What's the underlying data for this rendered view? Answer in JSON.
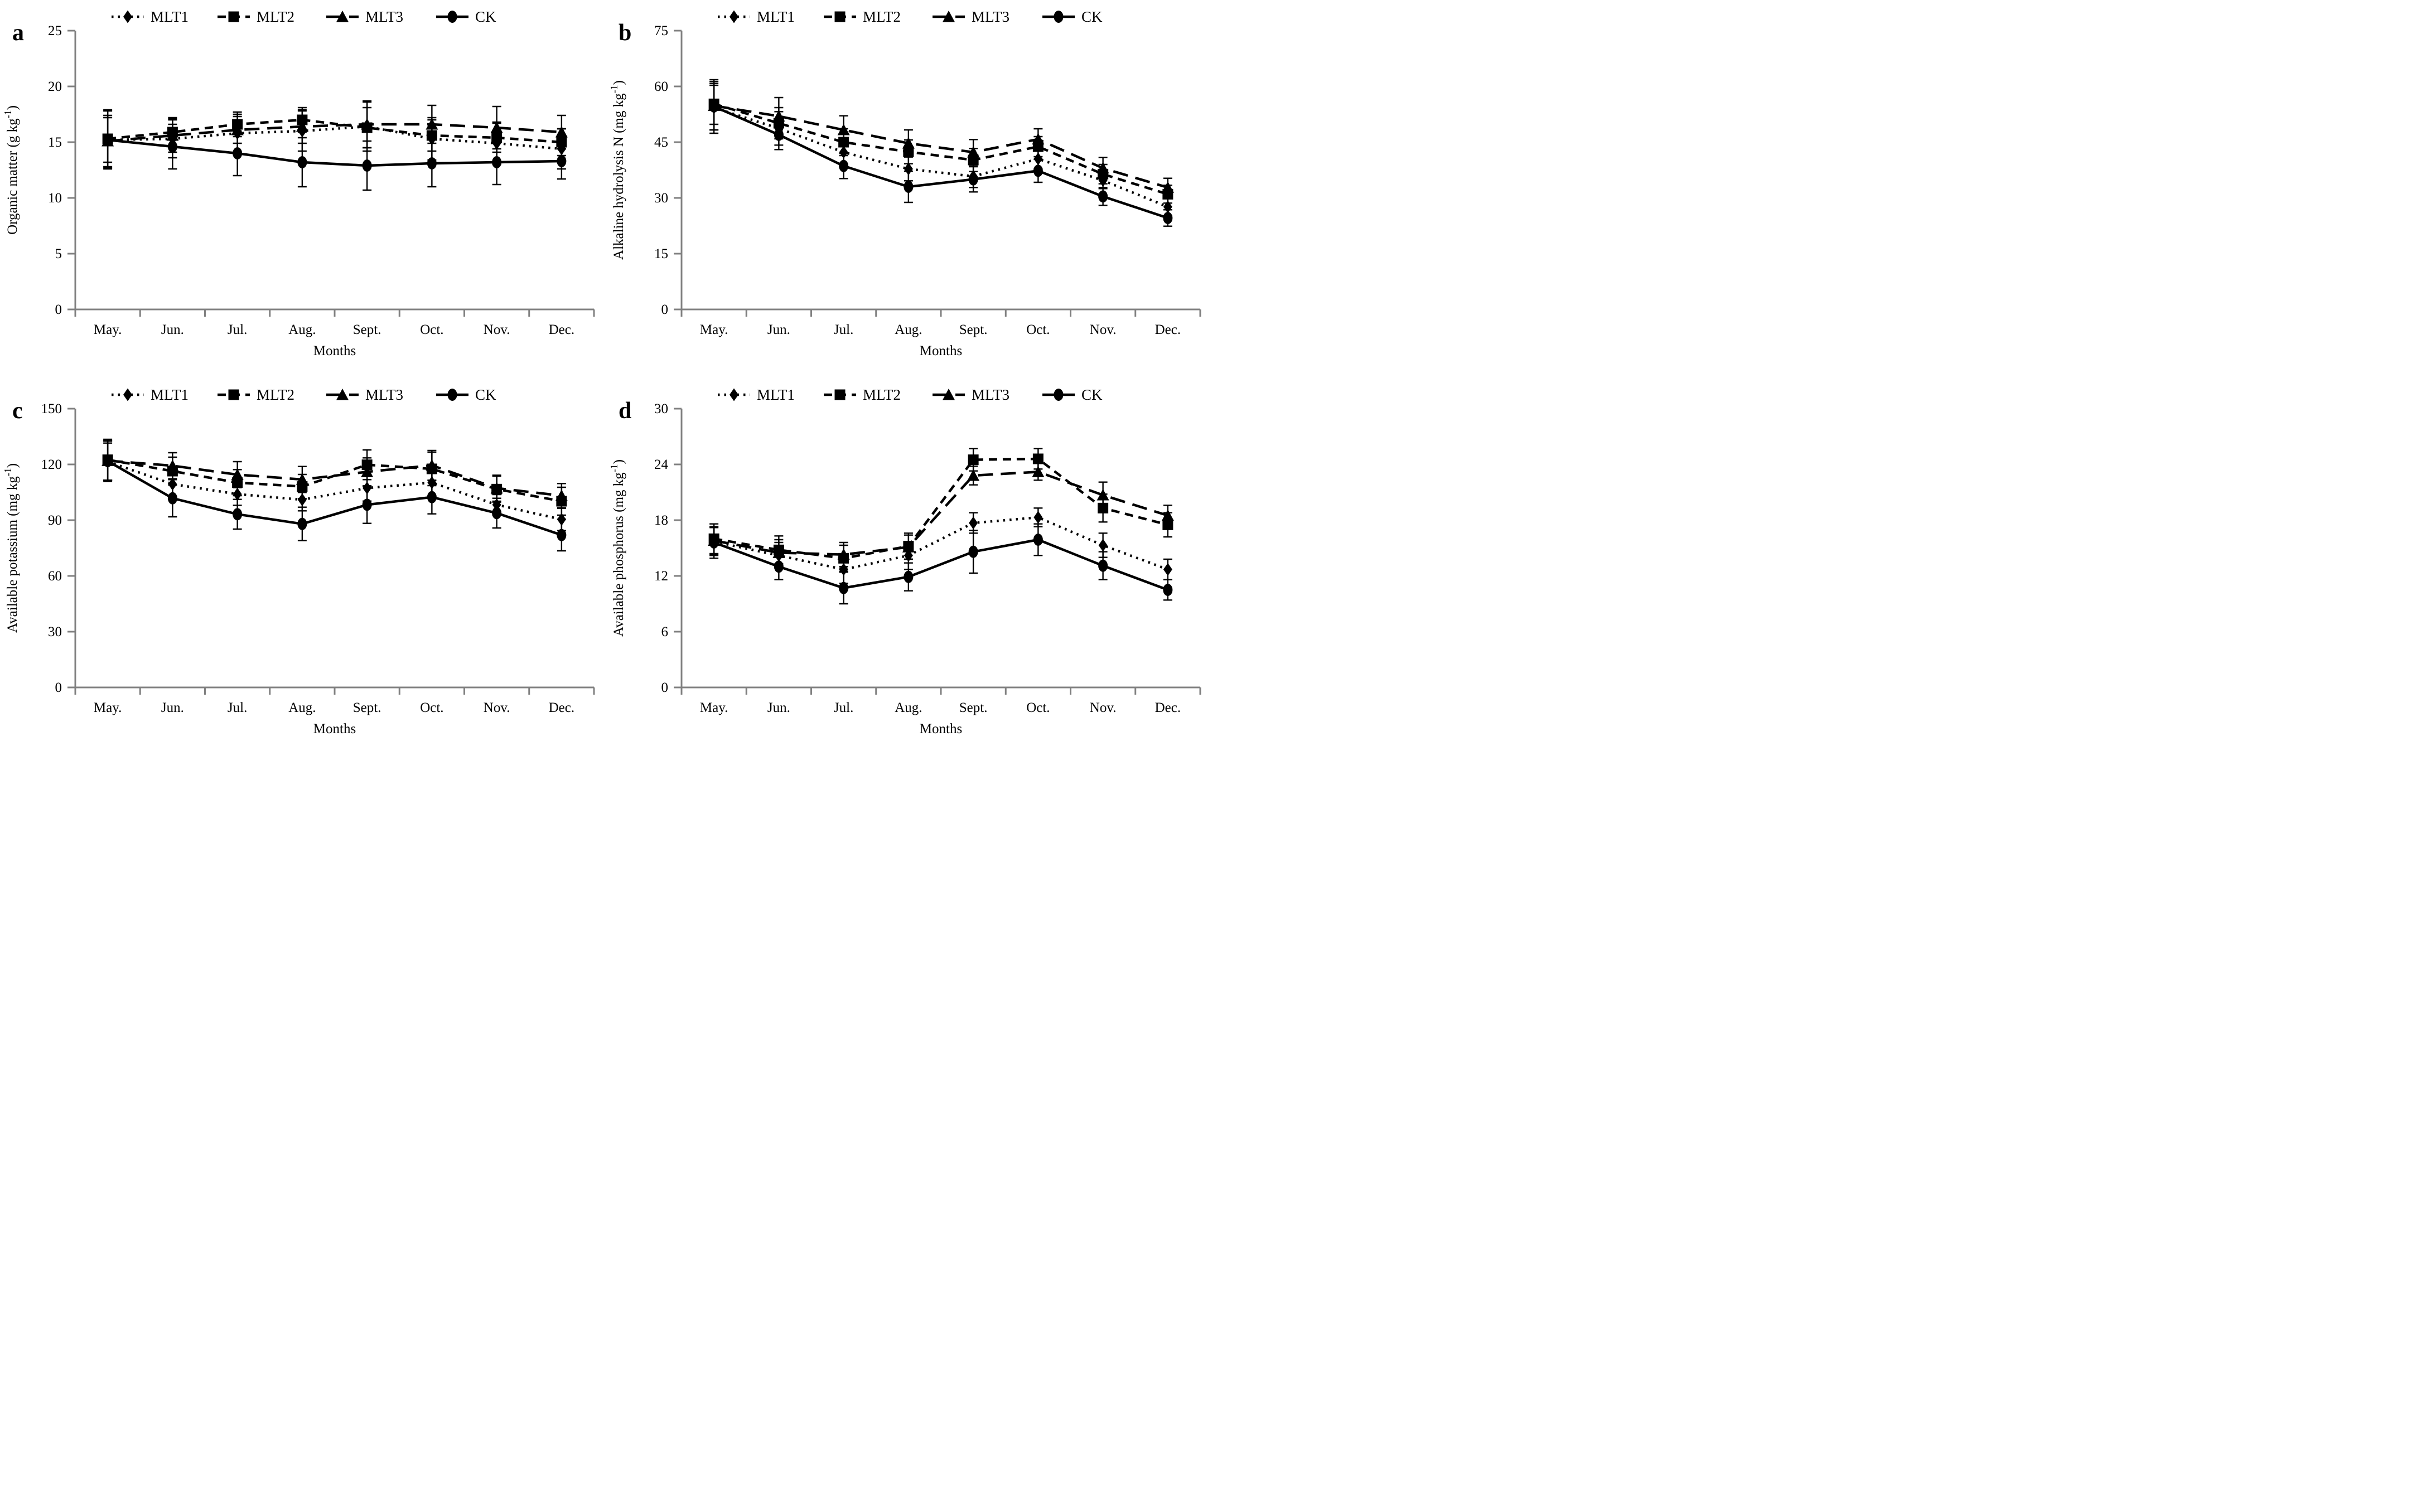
{
  "figure": {
    "background": "#ffffff",
    "series_color": "#000000",
    "spine_color": "#808080",
    "panel_letters": [
      "a",
      "b",
      "c",
      "d"
    ]
  },
  "chart_data": [
    {
      "type": "line",
      "panel": "a",
      "ylabel": "Organic matter (g kg-1)",
      "ylabel_parts": {
        "name": "Organic matter",
        "unit": "g kg",
        "sup": "-1"
      },
      "xlabel": "Months",
      "ylim": [
        0,
        25
      ],
      "yticks": [
        0,
        5,
        10,
        15,
        20,
        25
      ],
      "categories": [
        "May.",
        "Jun.",
        "Jul.",
        "Aug.",
        "Sept.",
        "Oct.",
        "Nov.",
        "Dec."
      ],
      "legend_position": "top",
      "grid": false,
      "series": [
        {
          "name": "MLT1",
          "marker": "diamond",
          "line": "dotted",
          "color": "#000000",
          "values": [
            15.2,
            15.3,
            15.8,
            16.0,
            16.4,
            15.3,
            14.9,
            14.4
          ],
          "errors": [
            2.0,
            1.7,
            1.7,
            1.8,
            2.2,
            1.9,
            1.9,
            1.8
          ]
        },
        {
          "name": "MLT2",
          "marker": "square",
          "line": "dashed",
          "color": "#000000",
          "values": [
            15.3,
            15.9,
            16.6,
            17.0,
            16.3,
            15.6,
            15.4,
            15.0
          ],
          "errors": [
            2.6,
            1.3,
            1.1,
            1.1,
            1.8,
            1.4,
            1.3,
            1.2
          ]
        },
        {
          "name": "MLT3",
          "marker": "triangle",
          "line": "longdash",
          "color": "#000000",
          "values": [
            15.1,
            15.6,
            16.1,
            16.4,
            16.6,
            16.6,
            16.3,
            15.9
          ],
          "errors": [
            2.3,
            1.5,
            1.2,
            1.5,
            2.1,
            1.7,
            1.9,
            1.5
          ]
        },
        {
          "name": "CK",
          "marker": "circle",
          "line": "solid",
          "color": "#000000",
          "values": [
            15.2,
            14.6,
            14.0,
            13.2,
            12.9,
            13.1,
            13.2,
            13.3
          ],
          "errors": [
            2.6,
            2.0,
            2.0,
            2.2,
            2.2,
            2.1,
            2.0,
            1.6
          ]
        }
      ]
    },
    {
      "type": "line",
      "panel": "b",
      "ylabel": "Alkaline hydrolysis N (mg kg-1)",
      "ylabel_parts": {
        "name": "Alkaline hydrolysis N",
        "unit": "mg kg",
        "sup": "-1"
      },
      "xlabel": "Months",
      "ylim": [
        0,
        75
      ],
      "yticks": [
        0,
        15,
        30,
        45,
        60,
        75
      ],
      "categories": [
        "May.",
        "Jun.",
        "Jul.",
        "Aug.",
        "Sept.",
        "Oct.",
        "Nov.",
        "Dec."
      ],
      "legend_position": "top",
      "grid": false,
      "series": [
        {
          "name": "MLT1",
          "marker": "diamond",
          "line": "dotted",
          "color": "#000000",
          "values": [
            54.3,
            48.7,
            42.3,
            37.8,
            35.8,
            40.5,
            34.7,
            27.6
          ],
          "errors": [
            6.0,
            4.5,
            3.5,
            3.2,
            3.0,
            2.6,
            2.2,
            2.4
          ]
        },
        {
          "name": "MLT2",
          "marker": "square",
          "line": "dashed",
          "color": "#000000",
          "values": [
            55.3,
            50.1,
            45.0,
            42.4,
            40.2,
            43.8,
            36.4,
            31.0
          ],
          "errors": [
            5.5,
            4.2,
            3.6,
            3.2,
            3.1,
            2.7,
            2.6,
            2.4
          ]
        },
        {
          "name": "MLT3",
          "marker": "triangle",
          "line": "longdash",
          "color": "#000000",
          "values": [
            54.8,
            52.0,
            48.3,
            44.7,
            42.3,
            45.8,
            38.0,
            32.8
          ],
          "errors": [
            6.5,
            5.0,
            3.8,
            3.6,
            3.4,
            2.8,
            2.9,
            2.5
          ]
        },
        {
          "name": "CK",
          "marker": "circle",
          "line": "solid",
          "color": "#000000",
          "values": [
            54.6,
            47.0,
            38.6,
            33.0,
            35.0,
            37.3,
            30.4,
            24.6
          ],
          "errors": [
            7.2,
            4.0,
            3.4,
            4.2,
            3.4,
            3.1,
            2.4,
            2.2
          ]
        }
      ]
    },
    {
      "type": "line",
      "panel": "c",
      "ylabel": "Available potassium (mg kg-1)",
      "ylabel_parts": {
        "name": "Available potassium",
        "unit": "mg kg",
        "sup": "-1"
      },
      "xlabel": "Months",
      "ylim": [
        0,
        150
      ],
      "yticks": [
        0,
        30,
        60,
        90,
        120,
        150
      ],
      "categories": [
        "May.",
        "Jun.",
        "Jul.",
        "Aug.",
        "Sept.",
        "Oct.",
        "Nov.",
        "Dec."
      ],
      "legend_position": "top",
      "grid": false,
      "series": [
        {
          "name": "MLT1",
          "marker": "diamond",
          "line": "dotted",
          "color": "#000000",
          "values": [
            121.5,
            109.4,
            104.0,
            101.0,
            107.3,
            110.2,
            98.3,
            90.4
          ],
          "errors": [
            10.0,
            6.5,
            6.0,
            6.0,
            7.0,
            7.0,
            5.5,
            6.0
          ]
        },
        {
          "name": "MLT2",
          "marker": "square",
          "line": "dashed",
          "color": "#000000",
          "values": [
            122.5,
            116.4,
            110.2,
            108.1,
            119.8,
            117.6,
            106.7,
            100.2
          ],
          "errors": [
            11.0,
            7.5,
            7.0,
            6.5,
            8.0,
            9.0,
            7.0,
            7.5
          ]
        },
        {
          "name": "MLT3",
          "marker": "triangle",
          "line": "longdash",
          "color": "#000000",
          "values": [
            122.0,
            119.3,
            114.5,
            111.9,
            116.0,
            119.5,
            107.2,
            103.2
          ],
          "errors": [
            10.5,
            7.0,
            7.0,
            7.0,
            7.5,
            8.0,
            7.0,
            6.5
          ]
        },
        {
          "name": "CK",
          "marker": "circle",
          "line": "solid",
          "color": "#000000",
          "values": [
            121.8,
            101.8,
            93.2,
            88.0,
            98.3,
            102.4,
            93.8,
            82.0
          ],
          "errors": [
            11.0,
            10.0,
            8.0,
            9.0,
            10.0,
            9.0,
            8.0,
            8.5
          ]
        }
      ]
    },
    {
      "type": "line",
      "panel": "d",
      "ylabel": "Available phosphorus (mg kg-1)",
      "ylabel_parts": {
        "name": "Available phosphorus",
        "unit": "mg kg",
        "sup": "-1"
      },
      "xlabel": "Months",
      "ylim": [
        0,
        30
      ],
      "yticks": [
        0,
        6,
        12,
        18,
        24,
        30
      ],
      "categories": [
        "May.",
        "Jun.",
        "Jul.",
        "Aug.",
        "Sept.",
        "Oct.",
        "Nov.",
        "Dec."
      ],
      "legend_position": "top",
      "grid": false,
      "series": [
        {
          "name": "MLT1",
          "marker": "diamond",
          "line": "dotted",
          "color": "#000000",
          "values": [
            15.7,
            14.2,
            12.7,
            14.2,
            17.7,
            18.3,
            15.3,
            12.7
          ],
          "errors": [
            1.5,
            1.4,
            1.5,
            1.5,
            1.1,
            1.0,
            1.3,
            1.1
          ]
        },
        {
          "name": "MLT2",
          "marker": "square",
          "line": "dashed",
          "color": "#000000",
          "values": [
            16.0,
            14.8,
            13.9,
            15.2,
            24.5,
            24.6,
            19.3,
            17.5
          ],
          "errors": [
            1.6,
            1.5,
            1.4,
            1.4,
            1.2,
            1.1,
            1.5,
            1.3
          ]
        },
        {
          "name": "MLT3",
          "marker": "triangle",
          "line": "longdash",
          "color": "#000000",
          "values": [
            15.8,
            14.5,
            14.3,
            15.1,
            22.8,
            23.2,
            20.7,
            18.5
          ],
          "errors": [
            1.5,
            1.4,
            1.3,
            1.3,
            1.0,
            0.9,
            1.4,
            1.1
          ]
        },
        {
          "name": "CK",
          "marker": "circle",
          "line": "solid",
          "color": "#000000",
          "values": [
            15.6,
            13.0,
            10.7,
            11.9,
            14.6,
            15.9,
            13.1,
            10.5
          ],
          "errors": [
            1.7,
            1.4,
            1.7,
            1.5,
            2.3,
            1.7,
            1.5,
            1.1
          ]
        }
      ]
    }
  ]
}
